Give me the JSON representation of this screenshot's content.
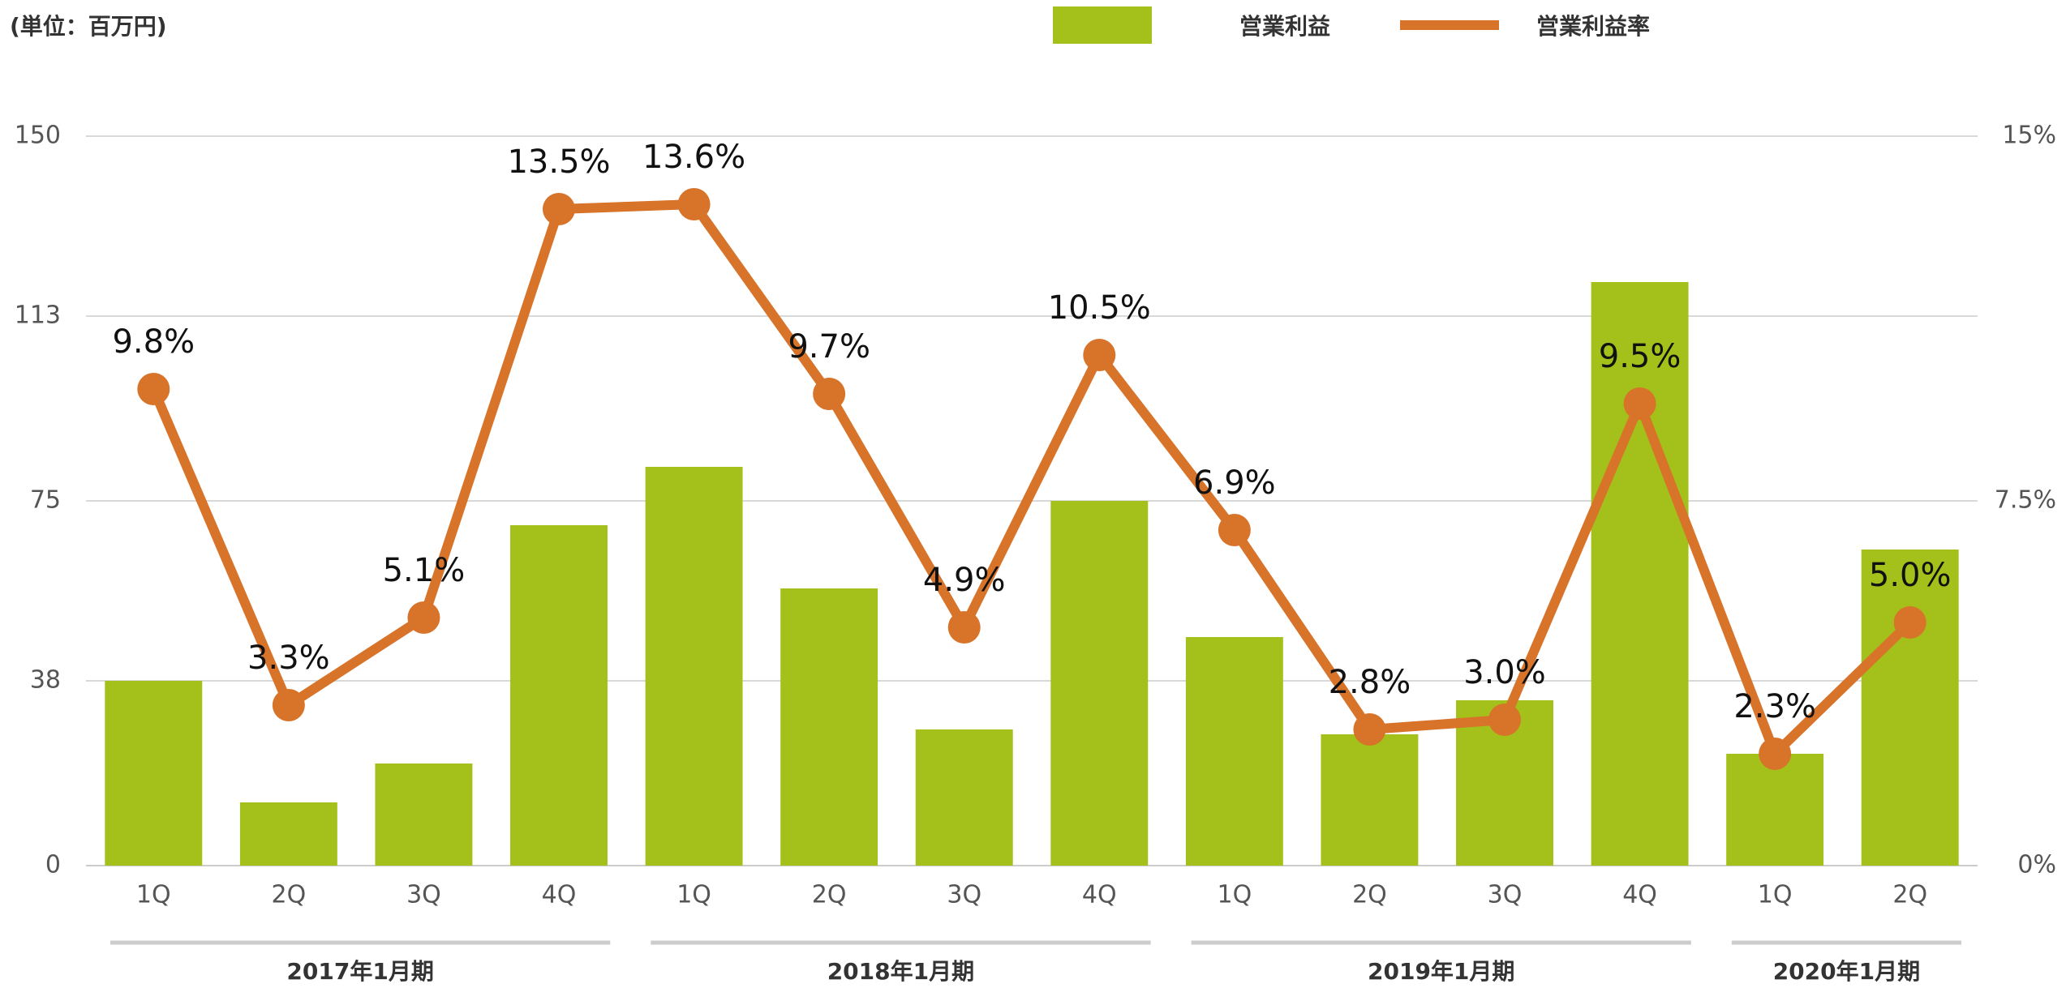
{
  "chart_data": {
    "type": "bar_line",
    "unit_label": "(単位：百万円)",
    "categories": [
      "1Q",
      "2Q",
      "3Q",
      "4Q",
      "1Q",
      "2Q",
      "3Q",
      "4Q",
      "1Q",
      "2Q",
      "3Q",
      "4Q",
      "1Q",
      "2Q"
    ],
    "groups": [
      {
        "name": "2017年1月期",
        "span": 4
      },
      {
        "name": "2018年1月期",
        "span": 4
      },
      {
        "name": "2019年1月期",
        "span": 4
      },
      {
        "name": "2020年1月期",
        "span": 2
      }
    ],
    "series": [
      {
        "name": "営業利益",
        "type": "bar",
        "color": "#a3c11a",
        "values": [
          38,
          13,
          21,
          70,
          82,
          57,
          28,
          75,
          47,
          27,
          34,
          120,
          23,
          65
        ]
      },
      {
        "name": "営業利益率",
        "type": "line",
        "axis": "y2",
        "color": "#d8732a",
        "values": [
          9.8,
          3.3,
          5.1,
          13.5,
          13.6,
          9.7,
          4.9,
          10.5,
          6.9,
          2.8,
          3.0,
          9.5,
          2.3,
          5.0
        ],
        "value_labels": [
          "9.8%",
          "3.3%",
          "5.1%",
          "13.5%",
          "13.6%",
          "9.7%",
          "4.9%",
          "10.5%",
          "6.9%",
          "2.8%",
          "3.0%",
          "9.5%",
          "2.3%",
          "5.0%"
        ]
      }
    ],
    "ylim": [
      0,
      150
    ],
    "yticks": [
      0,
      38,
      75,
      113,
      150
    ],
    "y2lim": [
      0,
      15
    ],
    "y2ticks": [
      {
        "value": 0,
        "label": "0%"
      },
      {
        "value": 7.5,
        "label": "7.5%"
      },
      {
        "value": 15,
        "label": "15%"
      }
    ],
    "grid": true
  }
}
